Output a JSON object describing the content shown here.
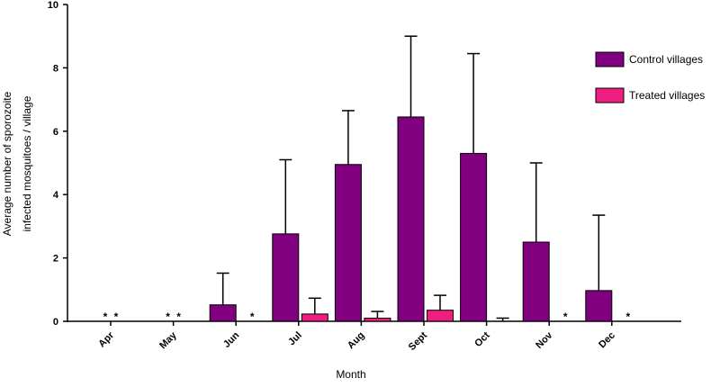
{
  "chart_data": {
    "type": "bar",
    "categories": [
      "Apr",
      "May",
      "Jun",
      "Jul",
      "Aug",
      "Sept",
      "Oct",
      "Nov",
      "Dec"
    ],
    "series": [
      {
        "name": "Control villages",
        "color": "#800080",
        "values": [
          null,
          null,
          0.52,
          2.76,
          4.95,
          6.45,
          5.3,
          2.5,
          0.97
        ],
        "errors": [
          null,
          null,
          1.0,
          2.34,
          1.7,
          2.55,
          3.15,
          2.5,
          2.38
        ],
        "value_labels": [
          "*",
          "*",
          null,
          null,
          null,
          null,
          null,
          null,
          null
        ]
      },
      {
        "name": "Treated villages",
        "color": "#ee1f80",
        "values": [
          null,
          null,
          null,
          0.23,
          0.1,
          0.35,
          0,
          null,
          null
        ],
        "errors": [
          null,
          null,
          null,
          0.5,
          0.21,
          0.47,
          0.1,
          null,
          null
        ],
        "value_labels": [
          "*",
          "*",
          "*",
          null,
          null,
          null,
          null,
          "*",
          "*"
        ]
      }
    ],
    "xlabel": "Month",
    "ylabel": [
      "Average number of sporozoite",
      "infected mosquitoes / village"
    ],
    "ylim": [
      0,
      10
    ],
    "yticks": [
      0,
      2,
      4,
      6,
      8,
      10
    ],
    "legend": "upper right"
  }
}
